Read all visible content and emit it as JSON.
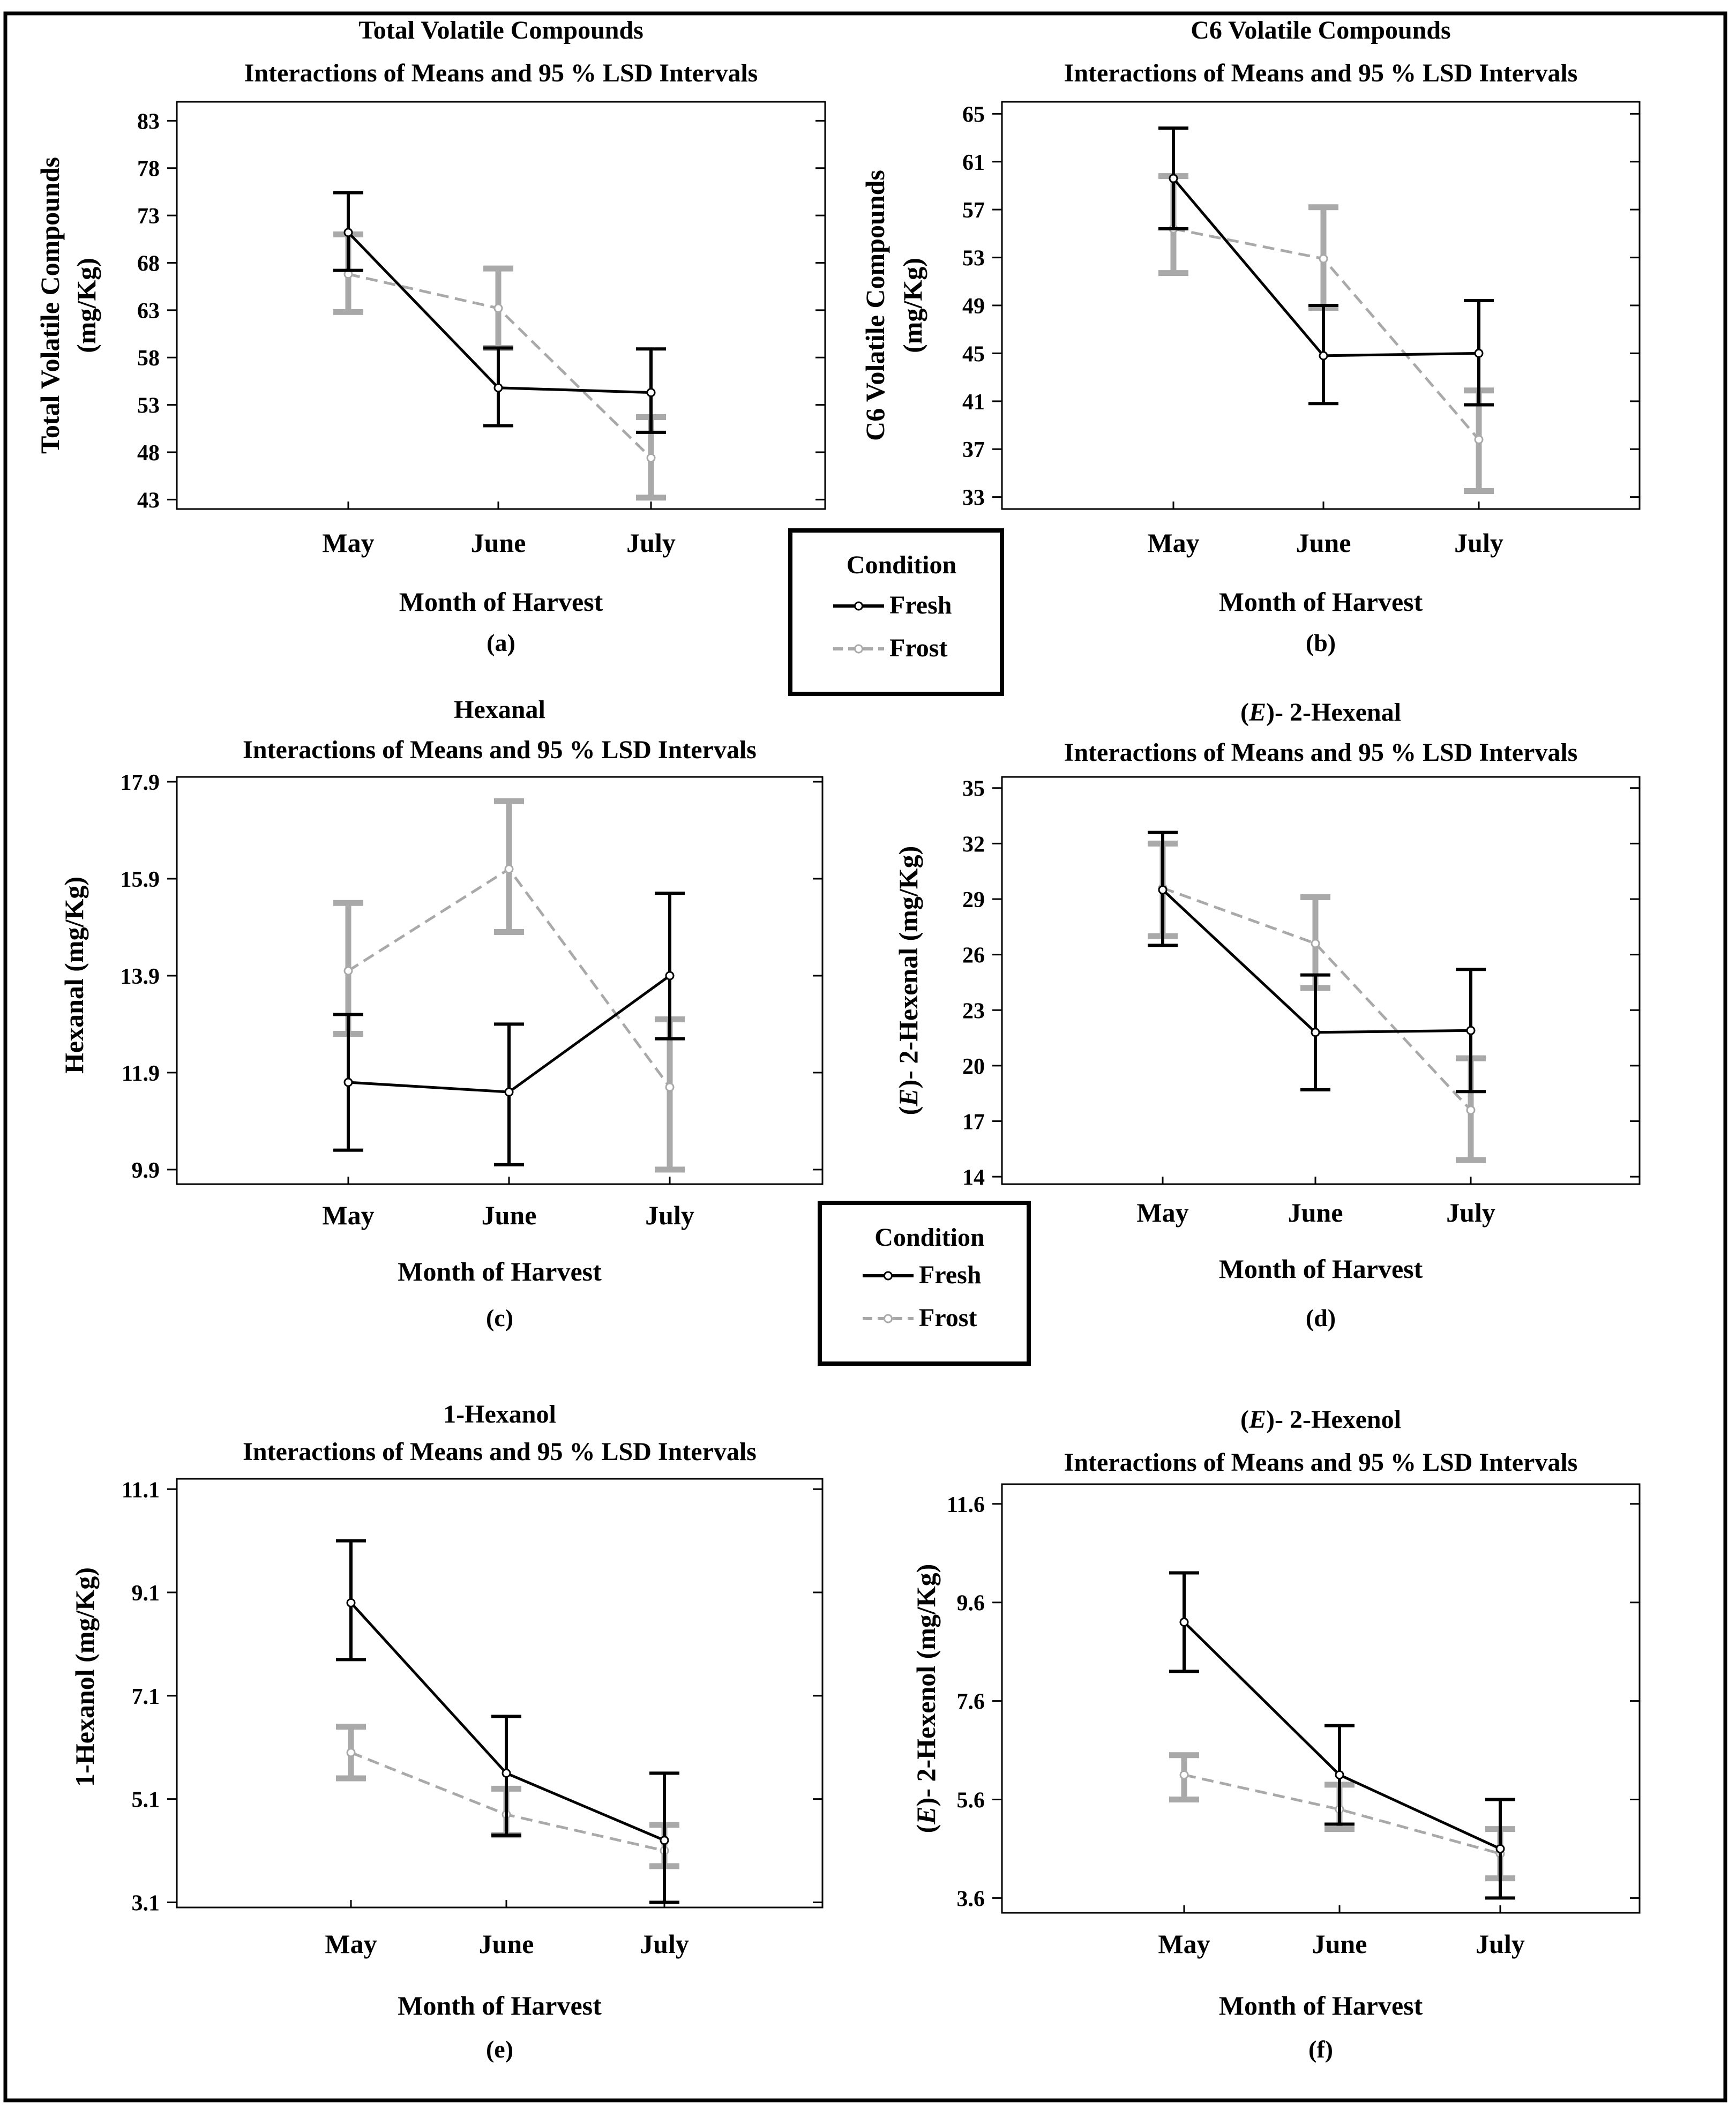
{
  "figure": {
    "legends": [
      {
        "title": "Condition",
        "entries": [
          "Fresh",
          "Frost"
        ]
      },
      {
        "title": "Condition",
        "entries": [
          "Fresh",
          "Frost"
        ]
      }
    ]
  },
  "chart_data": [
    {
      "type": "line",
      "panel_label": "(a)",
      "title": "Total Volatile Compounds",
      "subtitle": "Interactions of Means and 95 % LSD Intervals",
      "ylabel_lines": [
        "Total Volatile Compounds",
        "(mg/Kg)"
      ],
      "xlabel": "Month of Harvest",
      "categories": [
        "May",
        "June",
        "July"
      ],
      "ylim": [
        42,
        85
      ],
      "yticks": [
        "43",
        "48",
        "53",
        "58",
        "63",
        "68",
        "73",
        "78",
        "83"
      ],
      "series": [
        {
          "name": "Fresh",
          "values": [
            71.2,
            54.8,
            54.3
          ],
          "lower": [
            67.2,
            50.8,
            50.1
          ],
          "upper": [
            75.4,
            59.0,
            58.9
          ]
        },
        {
          "name": "Frost",
          "values": [
            66.8,
            63.2,
            47.4
          ],
          "lower": [
            62.8,
            59.0,
            43.2
          ],
          "upper": [
            71.0,
            67.4,
            51.7
          ]
        }
      ]
    },
    {
      "type": "line",
      "panel_label": "(b)",
      "title": "C6 Volatile Compounds",
      "subtitle": "Interactions of Means and 95 % LSD Intervals",
      "ylabel_lines": [
        "C6 Volatile Compounds",
        "(mg/Kg)"
      ],
      "xlabel": "Month of Harvest",
      "categories": [
        "May",
        "June",
        "July"
      ],
      "ylim": [
        32,
        66
      ],
      "yticks": [
        "33",
        "37",
        "41",
        "45",
        "49",
        "53",
        "57",
        "61",
        "65"
      ],
      "series": [
        {
          "name": "Fresh",
          "values": [
            59.6,
            44.8,
            45.0
          ],
          "lower": [
            55.4,
            40.8,
            40.7
          ],
          "upper": [
            63.8,
            49.0,
            49.4
          ]
        },
        {
          "name": "Frost",
          "values": [
            55.4,
            52.9,
            37.8
          ],
          "lower": [
            51.7,
            48.8,
            33.5
          ],
          "upper": [
            59.8,
            57.2,
            41.9
          ]
        }
      ]
    },
    {
      "type": "line",
      "panel_label": "(c)",
      "title": "Hexanal",
      "subtitle": "Interactions of Means and 95 % LSD Intervals",
      "ylabel_lines": [
        "Hexanal (mg/Kg)"
      ],
      "xlabel": "Month of Harvest",
      "categories": [
        "May",
        "June",
        "July"
      ],
      "ylim": [
        9.6,
        18.0
      ],
      "yticks": [
        "9.9",
        "11.9",
        "13.9",
        "15.9",
        "17.9"
      ],
      "series": [
        {
          "name": "Fresh",
          "values": [
            11.7,
            11.5,
            13.9
          ],
          "lower": [
            10.3,
            10.0,
            12.6
          ],
          "upper": [
            13.1,
            12.9,
            15.6
          ]
        },
        {
          "name": "Frost",
          "values": [
            14.0,
            16.1,
            11.6
          ],
          "lower": [
            12.7,
            14.8,
            9.9
          ],
          "upper": [
            15.4,
            17.5,
            13.0
          ]
        }
      ]
    },
    {
      "type": "line",
      "panel_label": "(d)",
      "title": "(E)- 2-Hexenal",
      "title_parts": [
        "(",
        "E",
        ")- 2-Hexenal"
      ],
      "subtitle": "Interactions of Means and  95 % LSD Intervals",
      "ylabel_parts": [
        "(",
        "E",
        ")- 2-Hexenal (mg/Kg)"
      ],
      "xlabel": "Month of Harvest",
      "categories": [
        "May",
        "June",
        "July"
      ],
      "ylim": [
        13.6,
        35.6
      ],
      "yticks": [
        "14",
        "17",
        "20",
        "23",
        "26",
        "29",
        "32",
        "35"
      ],
      "series": [
        {
          "name": "Fresh",
          "values": [
            29.5,
            21.8,
            21.9
          ],
          "lower": [
            26.5,
            18.7,
            18.6
          ],
          "upper": [
            32.6,
            24.9,
            25.2
          ]
        },
        {
          "name": "Frost",
          "values": [
            29.6,
            26.6,
            17.6
          ],
          "lower": [
            27.0,
            24.2,
            14.9
          ],
          "upper": [
            32.0,
            29.1,
            20.4
          ]
        }
      ]
    },
    {
      "type": "line",
      "panel_label": "(e)",
      "title": "1-Hexanol",
      "subtitle": "Interactions of Means and  95 % LSD Intervals",
      "ylabel_lines": [
        "1-Hexanol (mg/Kg)"
      ],
      "xlabel": "Month of Harvest",
      "categories": [
        "May",
        "June",
        "July"
      ],
      "ylim": [
        3.0,
        11.3
      ],
      "yticks": [
        "3.1",
        "5.1",
        "7.1",
        "9.1",
        "11.1"
      ],
      "series": [
        {
          "name": "Fresh",
          "values": [
            8.9,
            5.6,
            4.3
          ],
          "lower": [
            7.8,
            4.4,
            3.1
          ],
          "upper": [
            10.1,
            6.7,
            5.6
          ]
        },
        {
          "name": "Frost",
          "values": [
            6.0,
            4.8,
            4.1
          ],
          "lower": [
            5.5,
            4.4,
            3.8
          ],
          "upper": [
            6.5,
            5.3,
            4.6
          ]
        }
      ]
    },
    {
      "type": "line",
      "panel_label": "(f)",
      "title": "(E)- 2-Hexenol",
      "title_parts": [
        "(",
        "E",
        ")- 2-Hexenol"
      ],
      "subtitle": "Interactions of Means and  95 % LSD Intervals",
      "ylabel_parts": [
        "(",
        "E",
        ")- 2-Hexenol (mg/Kg)"
      ],
      "xlabel": "Month of Harvest",
      "categories": [
        "May",
        "June",
        "July"
      ],
      "ylim": [
        3.3,
        12.0
      ],
      "yticks": [
        "3.6",
        "5.6",
        "7.6",
        "9.6",
        "11.6"
      ],
      "series": [
        {
          "name": "Fresh",
          "values": [
            9.2,
            6.1,
            4.6
          ],
          "lower": [
            8.2,
            5.1,
            3.6
          ],
          "upper": [
            10.2,
            7.1,
            5.6
          ]
        },
        {
          "name": "Frost",
          "values": [
            6.1,
            5.4,
            4.5
          ],
          "lower": [
            5.6,
            5.0,
            4.0
          ],
          "upper": [
            6.5,
            5.9,
            5.0
          ]
        }
      ]
    }
  ]
}
